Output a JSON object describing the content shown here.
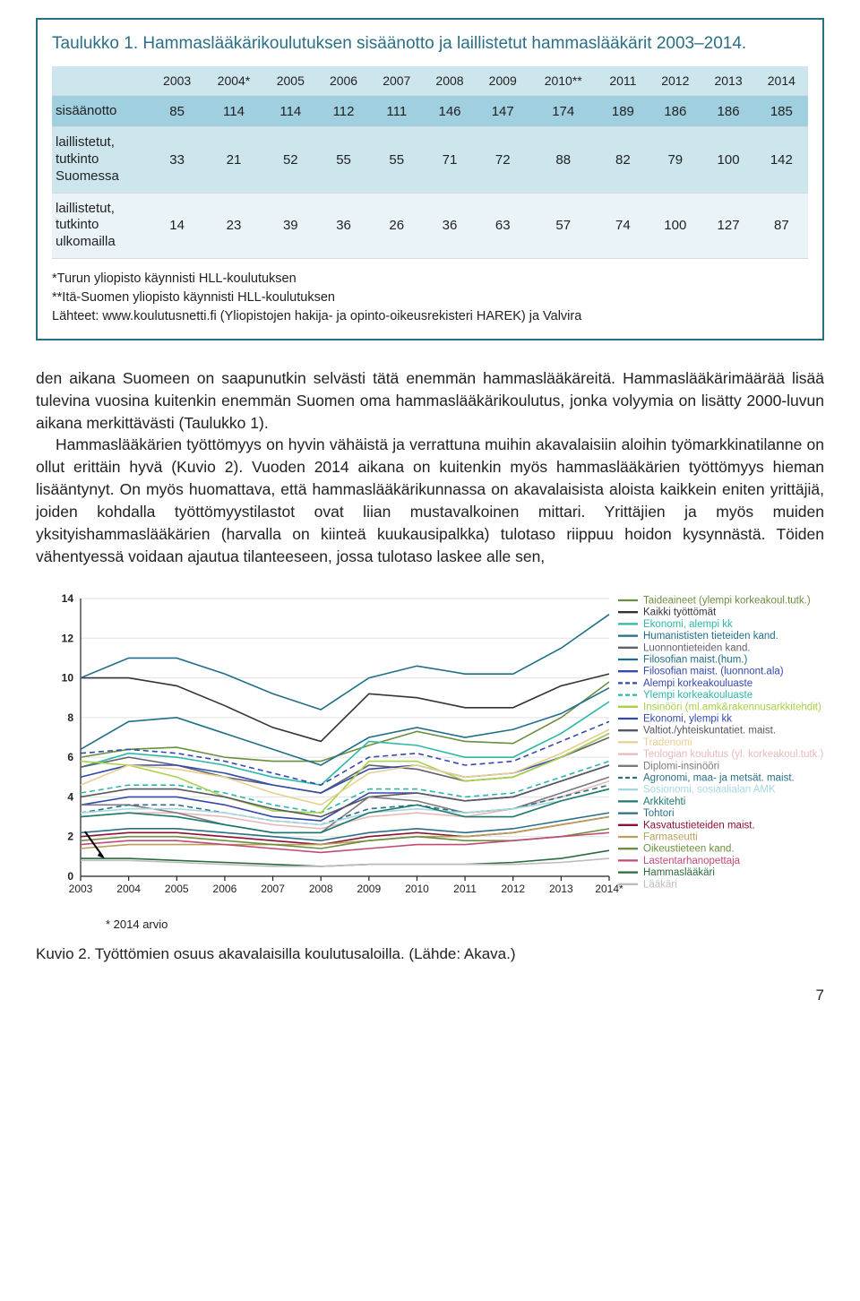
{
  "table1": {
    "title": "Taulukko 1. Hammaslääkärikoulutuksen sisäänotto ja laillistetut hammaslääkärit 2003–2014.",
    "columns": [
      "2003",
      "2004*",
      "2005",
      "2006",
      "2007",
      "2008",
      "2009",
      "2010**",
      "2011",
      "2012",
      "2013",
      "2014"
    ],
    "rows": [
      {
        "label": "sisäänotto",
        "values": [
          85,
          114,
          114,
          112,
          111,
          146,
          147,
          174,
          189,
          186,
          186,
          185
        ]
      },
      {
        "label": "laillistetut, tutkinto Suomessa",
        "values": [
          33,
          21,
          52,
          55,
          55,
          71,
          72,
          88,
          82,
          79,
          100,
          142
        ]
      },
      {
        "label": "laillistetut, tutkinto ulkomailla",
        "values": [
          14,
          23,
          39,
          36,
          26,
          36,
          63,
          57,
          74,
          100,
          127,
          87
        ]
      }
    ],
    "footnotes": [
      "*Turun yliopisto käynnisti HLL-koulutuksen",
      "**Itä-Suomen yliopisto käynnisti HLL-koulutuksen",
      "Lähteet: www.koulutusnetti.fi (Yliopistojen hakija- ja opinto-oikeusrekisteri HAREK) ja Valvira"
    ]
  },
  "body": {
    "p1": "den aikana Suomeen on saapunutkin selvästi tätä enemmän hammaslääkäreitä. Hammaslääkärimäärää lisää tulevina vuosina kuitenkin enemmän Suomen oma hammaslääkärikoulutus, jonka volyymia on lisätty 2000-luvun aikana merkittävästi (Taulukko 1).",
    "p2": "Hammaslääkärien työttömyys on hyvin vähäistä ja verrattuna muihin akavalaisiin aloihin työmarkkinatilanne on ollut erittäin hyvä (Kuvio 2). Vuoden 2014 aikana on kuitenkin myös hammaslääkärien työttömyys hieman lisääntynyt. On myös huomattava, että hammaslääkärikunnassa on akavalaisista aloista kaikkein eniten yrittäjiä, joiden kohdalla työttömyystilastot ovat liian mustavalkoinen mittari. Yrittäjien ja myös muiden yksityishammaslääkärien (harvalla on kiinteä kuukausipalkka) tulotaso riippuu hoidon kysynnästä. Töiden vähentyessä voidaan ajautua tilanteeseen, jossa tulotaso laskee alle sen,"
  },
  "chart": {
    "type": "line",
    "ylim": [
      0,
      14
    ],
    "ytick_step": 2,
    "x_labels": [
      "2003",
      "2004",
      "2005",
      "2006",
      "2007",
      "2008",
      "2009",
      "2010",
      "2011",
      "2012",
      "2013",
      "2014*"
    ],
    "x_asterisk_note": "* 2014 arvio",
    "plot_bg": "#ffffff",
    "grid_color": "#e2e2e2",
    "legend_fontsize": 11.5,
    "axis_fontsize": 12,
    "line_width": 1.6,
    "arrow_target_series_index": 23,
    "series": [
      {
        "label": "Taideaineet (ylempi korkeakoul.tutk.)",
        "color": "#6b8f3f",
        "values": [
          6.0,
          6.4,
          6.5,
          6.0,
          5.8,
          5.8,
          6.6,
          7.3,
          6.8,
          6.7,
          8.0,
          9.8
        ]
      },
      {
        "label": "Kaikki työttömät",
        "color": "#333333",
        "values": [
          10.0,
          10.0,
          9.6,
          8.6,
          7.5,
          6.8,
          9.2,
          9.0,
          8.5,
          8.5,
          9.6,
          10.2
        ]
      },
      {
        "label": "Ekonomi, alempi kk",
        "color": "#2bb8a6",
        "values": [
          5.5,
          6.2,
          6.0,
          5.6,
          5.0,
          4.6,
          6.8,
          6.6,
          6.0,
          6.0,
          7.2,
          8.8
        ]
      },
      {
        "label": "Humanististen tieteiden kand.",
        "color": "#1f6f87",
        "dash": false,
        "values": [
          10.0,
          11.0,
          11.0,
          10.2,
          9.2,
          8.4,
          10.0,
          10.6,
          10.2,
          10.2,
          11.5,
          13.2
        ]
      },
      {
        "label": "Luonnontieteiden kand.",
        "color": "#63606c",
        "values": [
          5.5,
          6.0,
          5.6,
          5.0,
          4.6,
          4.2,
          5.6,
          5.4,
          4.8,
          5.0,
          6.0,
          7.0
        ]
      },
      {
        "label": "Filosofian maist.(hum.)",
        "color": "#1f6f87",
        "values": [
          6.4,
          7.8,
          8.0,
          7.2,
          6.4,
          5.6,
          7.0,
          7.5,
          7.0,
          7.4,
          8.2,
          9.5
        ]
      },
      {
        "label": "Filosofian maist. (luonnont.ala)",
        "color": "#3449ad",
        "values": [
          5.0,
          5.6,
          5.6,
          5.2,
          4.6,
          4.2,
          5.4,
          5.6,
          5.0,
          5.2,
          6.0,
          7.2
        ]
      },
      {
        "label": "Alempi korkeakouluaste",
        "color": "#3449ad",
        "dash": true,
        "values": [
          6.2,
          6.4,
          6.2,
          5.8,
          5.2,
          4.6,
          6.0,
          6.2,
          5.6,
          5.8,
          6.8,
          7.8
        ]
      },
      {
        "label": "Ylempi korkeakouluaste",
        "color": "#2bb8a6",
        "dash": true,
        "values": [
          4.2,
          4.6,
          4.6,
          4.2,
          3.6,
          3.2,
          4.4,
          4.4,
          4.0,
          4.2,
          5.0,
          5.8
        ]
      },
      {
        "label": "Insinööri (ml.amk&rakennusarkkitehdit)",
        "color": "#a7d24a",
        "values": [
          5.8,
          5.6,
          5.0,
          4.0,
          3.3,
          3.2,
          5.8,
          5.8,
          4.8,
          5.0,
          6.0,
          7.2
        ]
      },
      {
        "label": "Ekonomi, ylempi kk",
        "color": "#3449ad",
        "values": [
          3.6,
          4.0,
          4.0,
          3.6,
          3.0,
          2.8,
          4.2,
          4.2,
          3.8,
          4.0,
          4.8,
          5.6
        ]
      },
      {
        "label": "Valtiot./yhteiskuntatiet. maist.",
        "color": "#58565e",
        "values": [
          4.0,
          4.4,
          4.4,
          4.0,
          3.4,
          3.0,
          4.0,
          4.2,
          3.8,
          4.0,
          4.8,
          5.6
        ]
      },
      {
        "label": "Tradenomi",
        "color": "#e9cf8f",
        "values": [
          4.6,
          5.6,
          5.4,
          5.0,
          4.2,
          3.6,
          5.2,
          5.6,
          5.0,
          5.2,
          6.2,
          7.4
        ]
      },
      {
        "label": "Teologian koulutus (yl. korkeakoul.tutk.)",
        "color": "#e9b9b9",
        "values": [
          3.0,
          3.2,
          3.2,
          3.0,
          2.6,
          2.4,
          3.0,
          3.2,
          3.0,
          3.4,
          4.0,
          4.8
        ]
      },
      {
        "label": "Diplomi-insinööri",
        "color": "#7e797f",
        "values": [
          3.6,
          3.6,
          3.2,
          2.6,
          2.2,
          2.2,
          4.0,
          3.8,
          3.2,
          3.4,
          4.2,
          5.0
        ]
      },
      {
        "label": "Agronomi, maa- ja metsät. maist.",
        "color": "#2a6f86",
        "dash": true,
        "values": [
          3.2,
          3.6,
          3.6,
          3.2,
          2.8,
          2.6,
          3.4,
          3.6,
          3.2,
          3.4,
          4.0,
          4.6
        ]
      },
      {
        "label": "Sosionomi, sosiaalialan AMK",
        "color": "#a7d8e2",
        "values": [
          3.2,
          3.4,
          3.4,
          3.2,
          2.8,
          2.6,
          3.2,
          3.4,
          3.2,
          3.4,
          3.8,
          4.4
        ]
      },
      {
        "label": "Arkkitehti",
        "color": "#1b7a69",
        "values": [
          3.0,
          3.2,
          3.0,
          2.6,
          2.2,
          2.2,
          3.2,
          3.6,
          3.0,
          3.0,
          3.8,
          4.4
        ]
      },
      {
        "label": "Tohtori",
        "color": "#2a6f86",
        "values": [
          2.2,
          2.4,
          2.4,
          2.2,
          2.0,
          1.8,
          2.2,
          2.4,
          2.2,
          2.4,
          2.8,
          3.2
        ]
      },
      {
        "label": "Kasvatustieteiden maist.",
        "color": "#8a1034",
        "values": [
          2.0,
          2.2,
          2.2,
          2.0,
          1.8,
          1.6,
          2.0,
          2.2,
          2.0,
          2.2,
          2.6,
          3.0
        ]
      },
      {
        "label": "Farmaseutti",
        "color": "#b89f5a",
        "values": [
          1.4,
          1.6,
          1.6,
          1.6,
          1.6,
          1.6,
          1.8,
          2.0,
          2.0,
          2.2,
          2.6,
          3.0
        ]
      },
      {
        "label": "Oikeustieteen kand.",
        "color": "#6b8f3f",
        "values": [
          1.8,
          2.0,
          2.0,
          1.8,
          1.6,
          1.4,
          1.8,
          2.0,
          1.8,
          1.8,
          2.0,
          2.4
        ]
      },
      {
        "label": "Lastentarhanopettaja",
        "color": "#c04b77",
        "values": [
          1.6,
          1.8,
          1.8,
          1.6,
          1.4,
          1.2,
          1.4,
          1.6,
          1.6,
          1.8,
          2.0,
          2.2
        ]
      },
      {
        "label": "Hammaslääkäri",
        "color": "#2a6b3d",
        "values": [
          0.9,
          0.9,
          0.8,
          0.7,
          0.6,
          0.5,
          0.6,
          0.6,
          0.6,
          0.7,
          0.9,
          1.3
        ]
      },
      {
        "label": "Lääkäri",
        "color": "#bdbdbd",
        "values": [
          0.8,
          0.8,
          0.7,
          0.6,
          0.5,
          0.5,
          0.6,
          0.6,
          0.6,
          0.6,
          0.7,
          0.9
        ]
      }
    ]
  },
  "caption": "Kuvio 2. Työttömien osuus akavalaisilla koulutusaloilla. (Lähde: Akava.)",
  "page_number": "7"
}
